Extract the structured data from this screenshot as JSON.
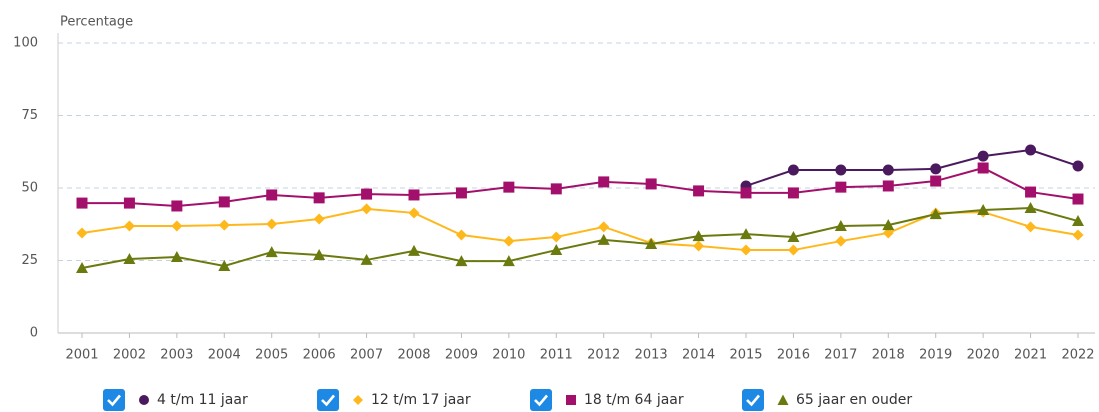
{
  "chart_data": {
    "type": "line",
    "y_label": "Percentage",
    "categories": [
      "2001",
      "2002",
      "2003",
      "2004",
      "2005",
      "2006",
      "2007",
      "2008",
      "2009",
      "2010",
      "2011",
      "2012",
      "2013",
      "2014",
      "2015",
      "2016",
      "2017",
      "2018",
      "2019",
      "2020",
      "2021",
      "2022"
    ],
    "series": [
      {
        "name": "4 t/m 11 jaar",
        "color": "#4b1a5e",
        "marker": "circle",
        "values": [
          null,
          null,
          null,
          null,
          null,
          null,
          null,
          null,
          null,
          null,
          null,
          null,
          null,
          null,
          50.7,
          56.2,
          56.2,
          56.2,
          56.6,
          61,
          63.1,
          57.6
        ]
      },
      {
        "name": "12 t/m 17 jaar",
        "color": "#ffb81c",
        "marker": "diamond",
        "values": [
          34.5,
          36.9,
          36.9,
          37.2,
          37.6,
          39.3,
          42.8,
          41.4,
          33.8,
          31.7,
          33.1,
          36.6,
          31,
          30,
          28.6,
          28.6,
          31.7,
          34.5,
          41.4,
          41.7,
          36.6,
          33.8
        ]
      },
      {
        "name": "18 t/m 64 jaar",
        "color": "#a3106b",
        "marker": "square",
        "values": [
          44.8,
          44.8,
          43.8,
          45.2,
          47.6,
          46.6,
          47.9,
          47.6,
          48.3,
          50.3,
          49.7,
          52.1,
          51.4,
          49,
          48.3,
          48.3,
          50.3,
          50.7,
          52.4,
          56.9,
          48.6,
          46.2
        ]
      },
      {
        "name": "65 jaar en ouder",
        "color": "#6b7a0f",
        "marker": "triangle",
        "values": [
          22.4,
          25.5,
          26.2,
          23.1,
          27.9,
          26.9,
          25.2,
          28.3,
          24.8,
          24.8,
          28.6,
          32.1,
          30.7,
          33.4,
          34.1,
          33.1,
          36.9,
          37.2,
          41,
          42.4,
          43.1,
          38.6
        ]
      }
    ],
    "ylim": [
      0,
      100
    ],
    "yticks": [
      0,
      25,
      50,
      75,
      100
    ],
    "grid": true
  }
}
